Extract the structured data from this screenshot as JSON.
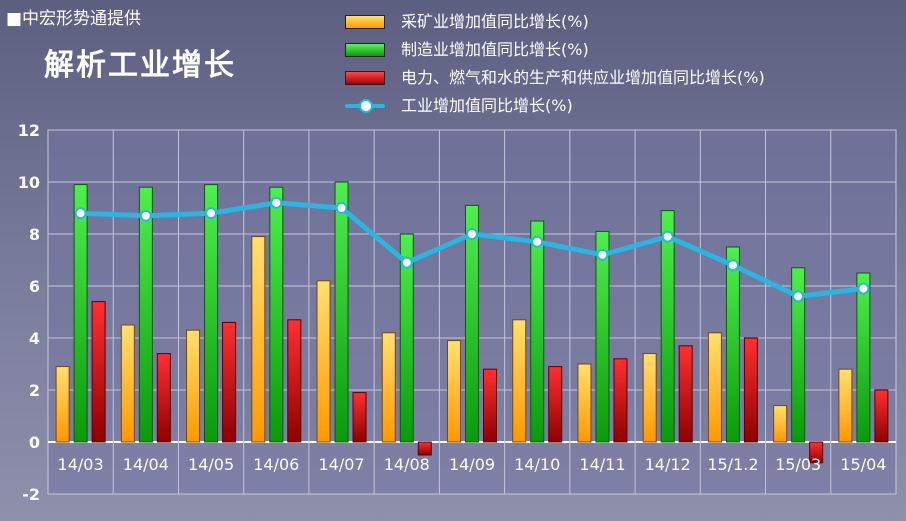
{
  "credit": "■中宏形势通提供",
  "chart_data": {
    "type": "bar",
    "title": "解析工业增长",
    "categories": [
      "14/03",
      "14/04",
      "14/05",
      "14/06",
      "14/07",
      "14/08",
      "14/09",
      "14/10",
      "14/11",
      "14/12",
      "15/1.2",
      "15/03",
      "15/04"
    ],
    "series": [
      {
        "name": "采矿业增加值同比增长(%)",
        "type": "bar",
        "color": "#ffb300",
        "values": [
          2.9,
          4.5,
          4.3,
          7.9,
          6.2,
          4.2,
          3.9,
          4.7,
          3.0,
          3.4,
          4.2,
          1.4,
          2.8
        ]
      },
      {
        "name": "制造业增加值同比增长(%)",
        "type": "bar",
        "color": "#22cc22",
        "values": [
          9.9,
          9.8,
          9.9,
          9.8,
          10.0,
          8.0,
          9.1,
          8.5,
          8.1,
          8.9,
          7.5,
          6.7,
          6.5
        ]
      },
      {
        "name": "电力、燃气和水的生产和供应业增加值同比增长(%)",
        "type": "bar",
        "color": "#dd1111",
        "values": [
          5.4,
          3.4,
          4.6,
          4.7,
          1.9,
          -0.5,
          2.8,
          2.9,
          3.2,
          3.7,
          4.0,
          -0.8,
          2.0
        ]
      },
      {
        "name": "工业增加值同比增长(%)",
        "type": "line",
        "color": "#29b6e0",
        "values": [
          8.8,
          8.7,
          8.8,
          9.2,
          9.0,
          6.9,
          8.0,
          7.7,
          7.2,
          7.9,
          6.8,
          5.6,
          5.9
        ]
      }
    ],
    "y_ticks": [
      "-2",
      "0",
      "2",
      "4",
      "6",
      "8",
      "10",
      "12"
    ],
    "ylim": [
      -2,
      12
    ],
    "grid": true,
    "legend_position": "top-right"
  }
}
